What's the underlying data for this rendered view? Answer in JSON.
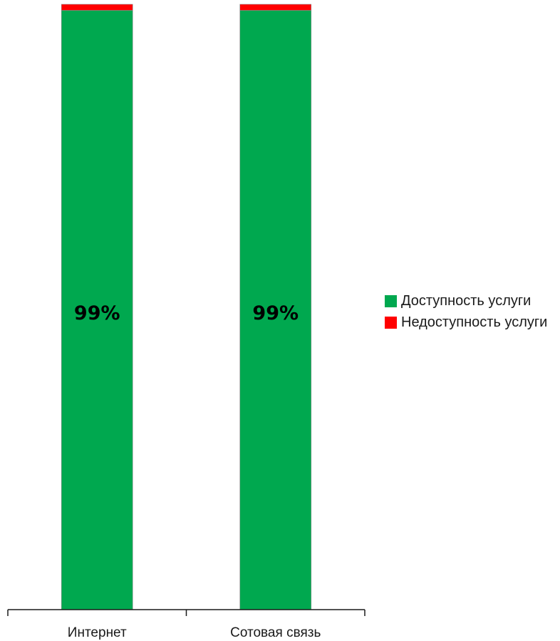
{
  "chart_data": {
    "type": "bar",
    "stacked": true,
    "categories": [
      "Интернет",
      "Сотовая связь"
    ],
    "series": [
      {
        "name": "Доступность услуги",
        "values": [
          99,
          99
        ],
        "color": "#00a84f"
      },
      {
        "name": "Недоступность услуги",
        "values": [
          1,
          1
        ],
        "color": "#ff0000"
      }
    ],
    "data_labels": [
      "99%",
      "99%"
    ],
    "ylim": [
      0,
      100
    ],
    "title": "",
    "xlabel": "",
    "ylabel": "",
    "grid": false,
    "legend_position": "right"
  }
}
